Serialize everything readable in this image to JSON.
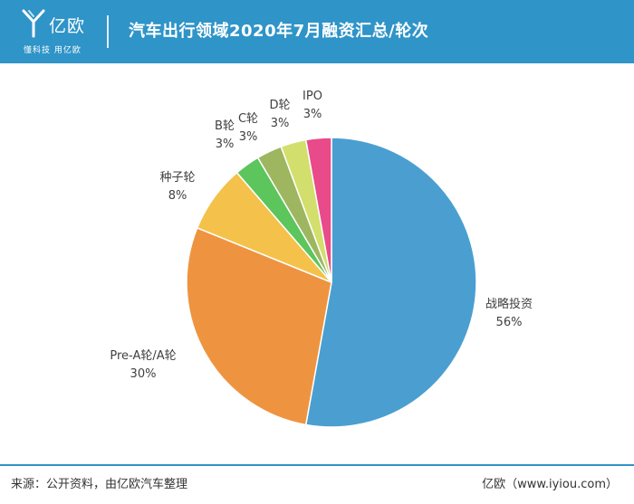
{
  "header": {
    "logo_text": "亿欧",
    "logo_slogan": "懂科技 用亿欧",
    "title": "汽车出行领域2020年7月融资汇总/轮次"
  },
  "chart_data": {
    "type": "pie",
    "slices": [
      {
        "label": "战略投资",
        "value": 56,
        "value_label": "56%",
        "color": "#4a9fd0"
      },
      {
        "label": "Pre-A轮/A轮",
        "value": 30,
        "value_label": "30%",
        "color": "#ee9440"
      },
      {
        "label": "种子轮",
        "value": 8,
        "value_label": "8%",
        "color": "#f4c24a"
      },
      {
        "label": "B轮",
        "value": 3,
        "value_label": "3%",
        "color": "#5cc55c"
      },
      {
        "label": "C轮",
        "value": 3,
        "value_label": "3%",
        "color": "#9eb660"
      },
      {
        "label": "D轮",
        "value": 3,
        "value_label": "3%",
        "color": "#d2df6c"
      },
      {
        "label": "IPO",
        "value": 3,
        "value_label": "3%",
        "color": "#e84a8a"
      }
    ]
  },
  "footer": {
    "source": "来源：公开资料，由亿欧汽车整理",
    "site": "亿欧（www.iyiou.com）"
  }
}
